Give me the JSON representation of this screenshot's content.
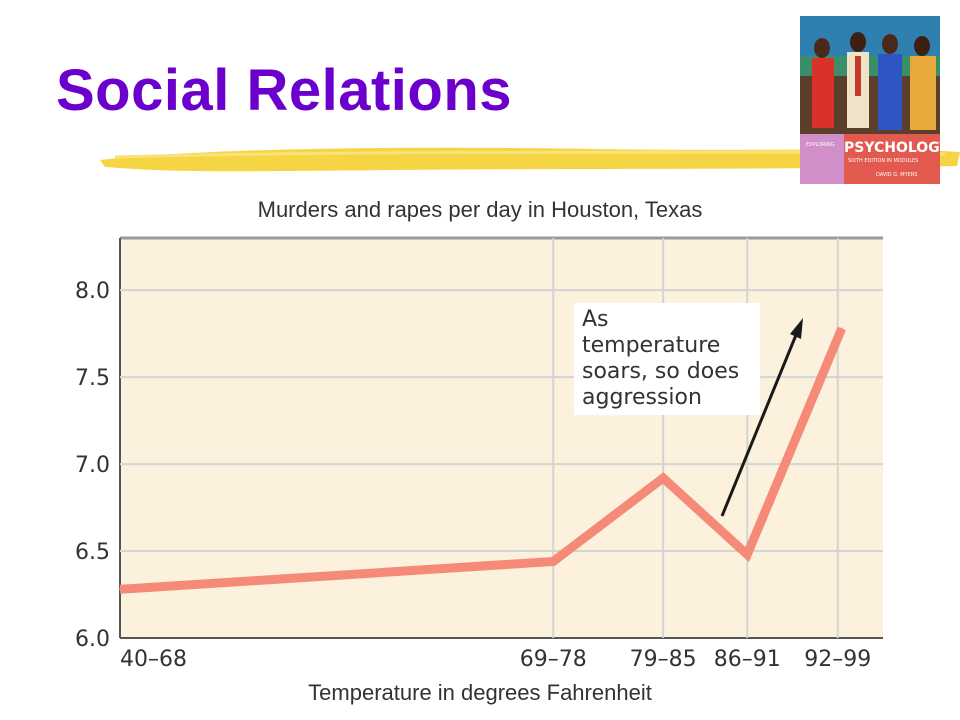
{
  "slide": {
    "title": "Social Relations"
  },
  "book_cover": {
    "series_label": "EXPLORING",
    "title": "PSYCHOLOGY",
    "edition": "SIXTH EDITION IN MODULES",
    "author": "DAVID G. MYERS"
  },
  "colors": {
    "title": "#6b00cc",
    "highlight": "#f5d33a",
    "plot_background": "#fcf1dd",
    "line": "#f58a78",
    "arrow": "#1a1a1a"
  },
  "chart_data": {
    "type": "line",
    "title": "Murders and rapes per day in Houston, Texas",
    "xlabel": "Temperature in degrees Fahrenheit",
    "ylabel": "",
    "categories": [
      "40–68",
      "69–78",
      "79–85",
      "86–91",
      "92–99"
    ],
    "x_midpoints": [
      54,
      73.5,
      82,
      88.5,
      95.5
    ],
    "series": [
      {
        "values": [
          6.28,
          6.44,
          6.92,
          6.48,
          7.78
        ]
      }
    ],
    "xlim": [
      40,
      99
    ],
    "ylim": [
      6.0,
      8.3
    ],
    "yticks": [
      6.0,
      6.5,
      7.0,
      7.5,
      8.0
    ],
    "ytick_labels": [
      "6.0",
      "6.5",
      "7.0",
      "7.5",
      "8.0"
    ],
    "grid": true,
    "annotation": {
      "text_lines": [
        "As temperature",
        "soars, so does",
        "aggression"
      ],
      "arrow": "points up-right toward the 92–99 peak"
    }
  }
}
